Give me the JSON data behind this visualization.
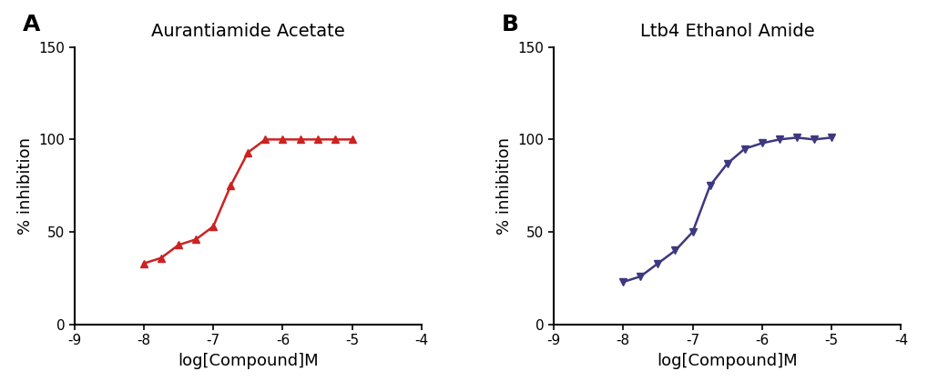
{
  "panel_A": {
    "title": "Aurantiamide Acetate",
    "color": "#CC2222",
    "x_data": [
      -8.0,
      -7.75,
      -7.5,
      -7.25,
      -7.0,
      -6.75,
      -6.5,
      -6.25,
      -6.0,
      -5.75,
      -5.5,
      -5.25,
      -5.0
    ],
    "y_data": [
      33,
      36,
      43,
      46,
      53,
      75,
      93,
      100,
      100,
      100,
      100,
      100,
      100
    ],
    "marker": "^"
  },
  "panel_B": {
    "title": "Ltb4 Ethanol Amide",
    "color": "#3D3880",
    "x_data": [
      -8.0,
      -7.75,
      -7.5,
      -7.25,
      -7.0,
      -6.75,
      -6.5,
      -6.25,
      -6.0,
      -5.75,
      -5.5,
      -5.25,
      -5.0
    ],
    "y_data": [
      23,
      26,
      33,
      40,
      50,
      75,
      87,
      95,
      98,
      100,
      101,
      100,
      101
    ],
    "marker": "v"
  },
  "xlabel": "log[Compound]M",
  "ylabel": "% inhibition",
  "xlim": [
    -9,
    -4
  ],
  "ylim": [
    0,
    150
  ],
  "xticks": [
    -9,
    -8,
    -7,
    -6,
    -5,
    -4
  ],
  "yticks": [
    0,
    50,
    100,
    150
  ],
  "label_A": "A",
  "label_B": "B",
  "bg_color": "#FFFFFF",
  "title_fontsize": 14,
  "label_fontsize": 13,
  "tick_fontsize": 11
}
